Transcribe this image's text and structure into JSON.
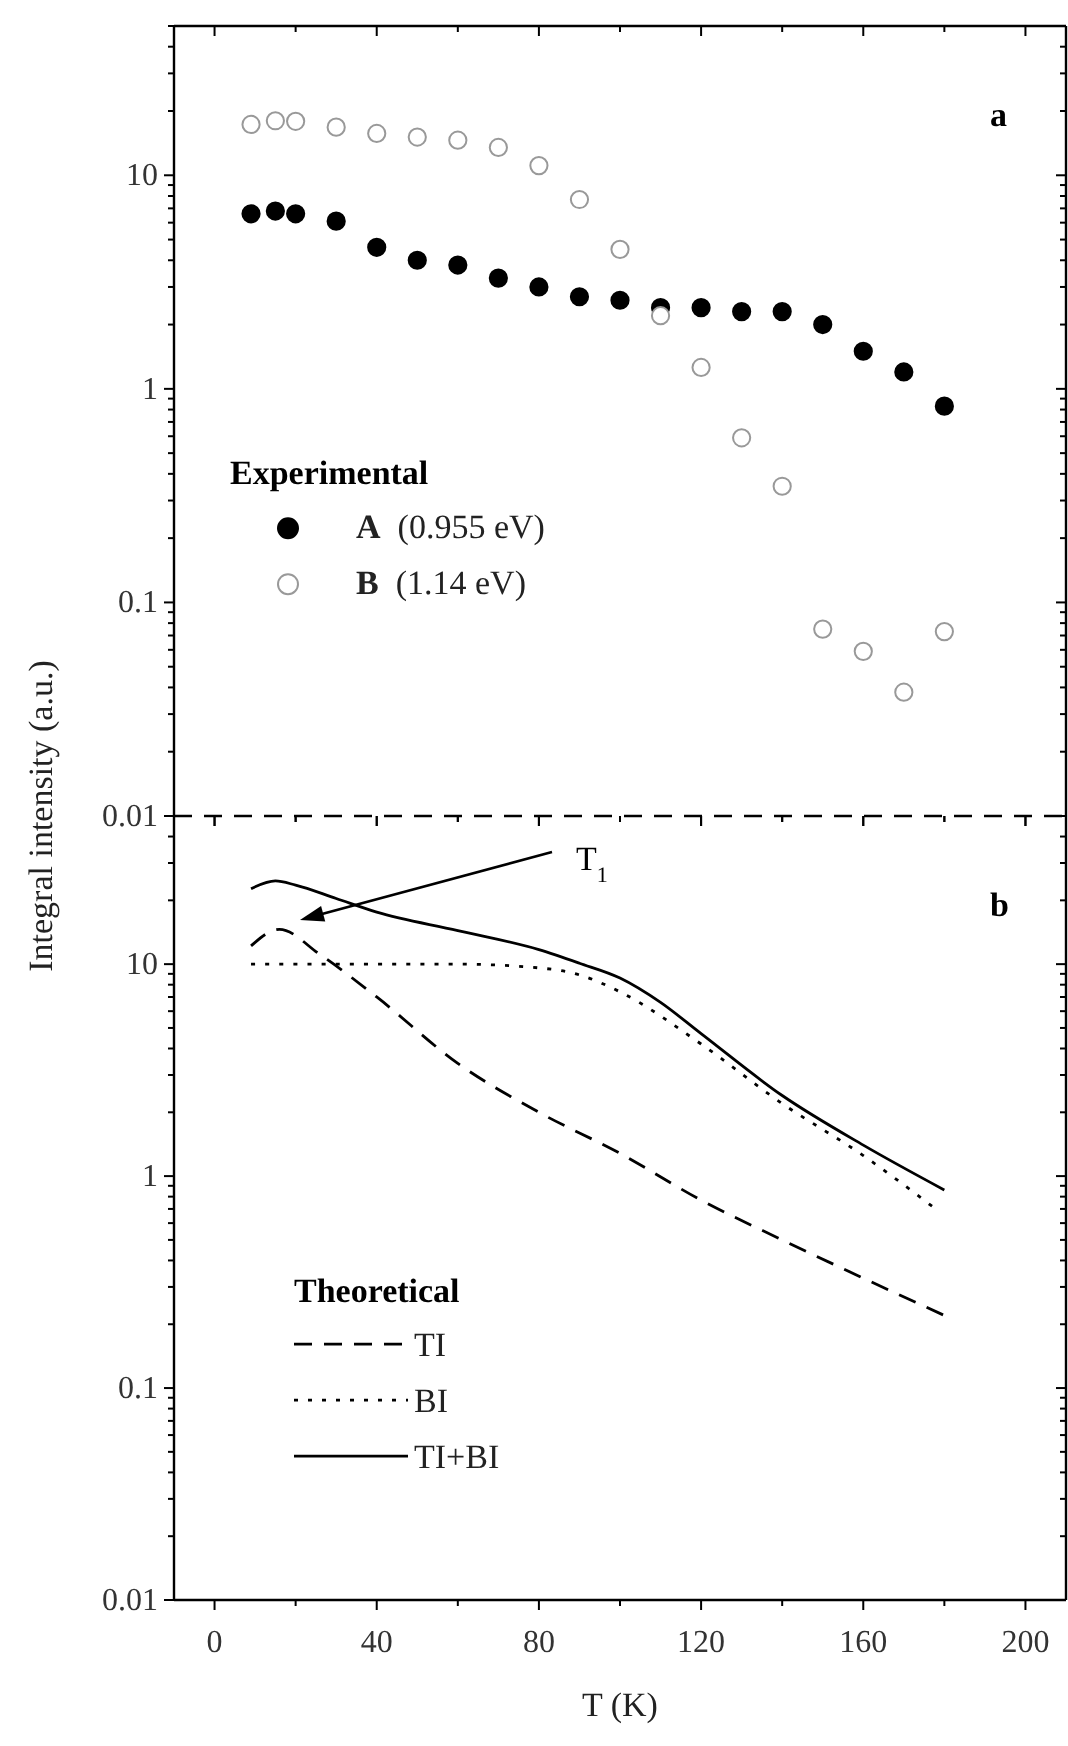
{
  "chart_data": [
    {
      "type": "scatter",
      "ylabel": "Integral intensity (a.u.)",
      "legend_title": "Experimental",
      "legend": "center left",
      "log": "y",
      "tick_labels": "y",
      "marker": "circle",
      "annotations": [
        "a"
      ],
      "xlim": [
        -10,
        210
      ],
      "xticks": [
        0,
        {
          "value": 20,
          "label": null
        },
        40,
        {
          "value": 60,
          "label": null
        },
        80,
        {
          "value": 100,
          "label": null
        },
        120,
        {
          "value": 140,
          "label": null
        },
        160,
        {
          "value": 180,
          "label": null
        },
        200
      ],
      "ylim": [
        0.01,
        50
      ],
      "yticks": [
        0.01,
        0.1,
        1,
        10
      ],
      "x": [
        9,
        15,
        20,
        30,
        40,
        50,
        60,
        70,
        80,
        90,
        100,
        110,
        120,
        130,
        140,
        150,
        160,
        170,
        180
      ],
      "series": [
        {
          "name": "A (0.955 eV)",
          "color": "#000000",
          "values": [
            6.6,
            6.8,
            6.6,
            6.1,
            4.6,
            4.0,
            3.8,
            3.3,
            3.0,
            2.7,
            2.6,
            2.4,
            2.4,
            2.3,
            2.3,
            2.0,
            1.5,
            1.2,
            0.83
          ]
        },
        {
          "name": "B (1.14 eV)",
          "color": "#999999",
          "values": [
            17.3,
            18,
            17.9,
            16.8,
            15.7,
            15.1,
            14.6,
            13.5,
            11.1,
            7.7,
            4.5,
            2.2,
            1.26,
            0.59,
            0.35,
            0.075,
            0.059,
            0.038,
            0.073
          ]
        }
      ]
    },
    {
      "type": "line",
      "xlabel": "T (K)",
      "legend_title": "Theoretical",
      "legend": "bottom left",
      "log": "y",
      "annotations": [
        "b",
        "T$_{1}$"
      ],
      "xlim": [
        -10,
        210
      ],
      "xticks": [
        0,
        {
          "value": 20,
          "label": null
        },
        40,
        {
          "value": 60,
          "label": null
        },
        80,
        {
          "value": 100,
          "label": null
        },
        120,
        {
          "value": 140,
          "label": null
        },
        160,
        {
          "value": 180,
          "label": null
        },
        200
      ],
      "ylim": [
        0.01,
        50
      ],
      "yticks": [
        0.01,
        0.1,
        1,
        10
      ],
      "series": [
        {
          "name": "TI",
          "color": "#000000",
          "line_style": "dashed",
          "x": [
            9,
            16,
            26,
            40,
            60,
            80,
            100,
            120,
            140,
            160,
            180
          ],
          "values": [
            12.2,
            14.6,
            11.1,
            7.0,
            3.4,
            2.0,
            1.28,
            0.77,
            0.5,
            0.33,
            0.22
          ]
        },
        {
          "name": "BI",
          "color": "#000000",
          "line_style": "dotted",
          "x": [
            9,
            30,
            60,
            80,
            90,
            100,
            120,
            140,
            160,
            177
          ],
          "values": [
            10,
            10,
            10,
            9.6,
            8.9,
            7.4,
            4.2,
            2.2,
            1.25,
            0.72
          ]
        },
        {
          "name": "TI+BI",
          "color": "#000000",
          "line_style": "solid",
          "x": [
            9,
            15,
            20,
            30,
            40,
            60,
            80,
            90,
            100,
            110,
            120,
            140,
            160,
            180
          ],
          "values": [
            22.7,
            24.7,
            23.6,
            20.4,
            17.6,
            14.4,
            11.7,
            10.1,
            8.6,
            6.6,
            4.7,
            2.4,
            1.4,
            0.86
          ]
        }
      ]
    }
  ]
}
